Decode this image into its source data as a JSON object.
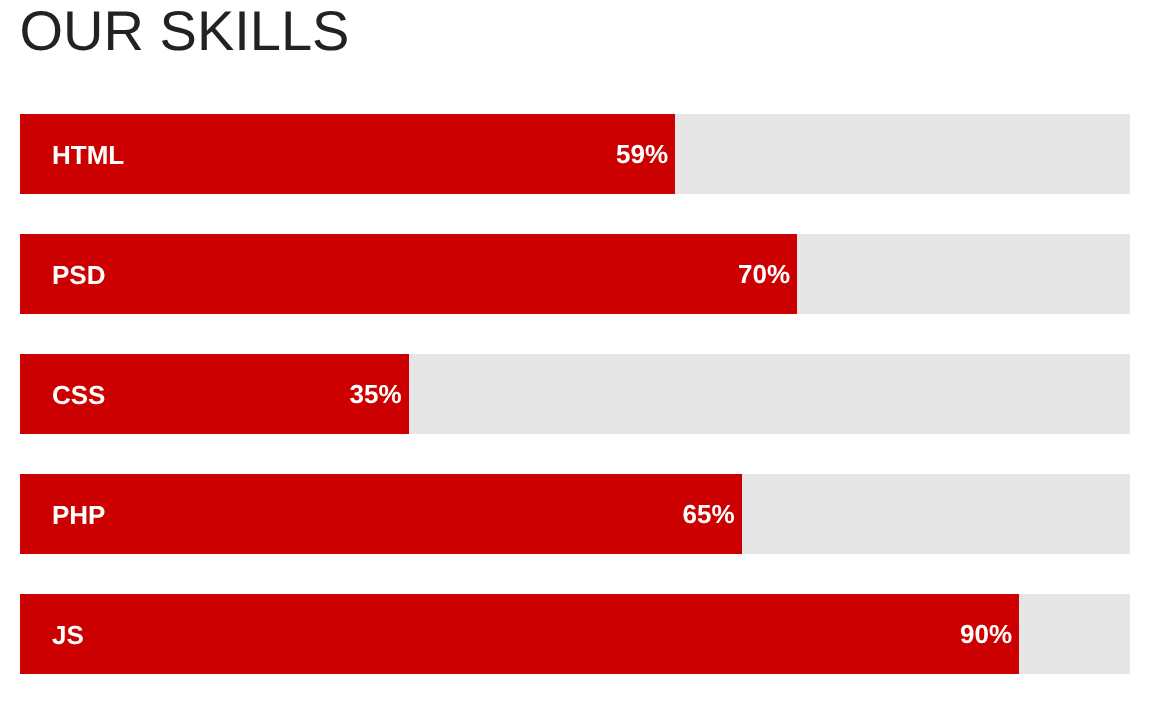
{
  "chart_data": {
    "type": "bar",
    "title": "OUR SKILLS",
    "orientation": "horizontal",
    "stacked": true,
    "categories": [
      "HTML",
      "PSD",
      "CSS",
      "PHP",
      "JS"
    ],
    "xlim": [
      0,
      100
    ],
    "tick_labels": false,
    "series": [
      {
        "color": "#cc0000",
        "values": [
          59,
          70,
          35,
          65,
          90
        ],
        "value_labels": [
          "59%",
          "70%",
          "35%",
          "65%",
          "90%"
        ]
      },
      {
        "color": "#e6e6e6",
        "values": [
          41,
          30,
          65,
          35,
          10
        ]
      }
    ]
  }
}
